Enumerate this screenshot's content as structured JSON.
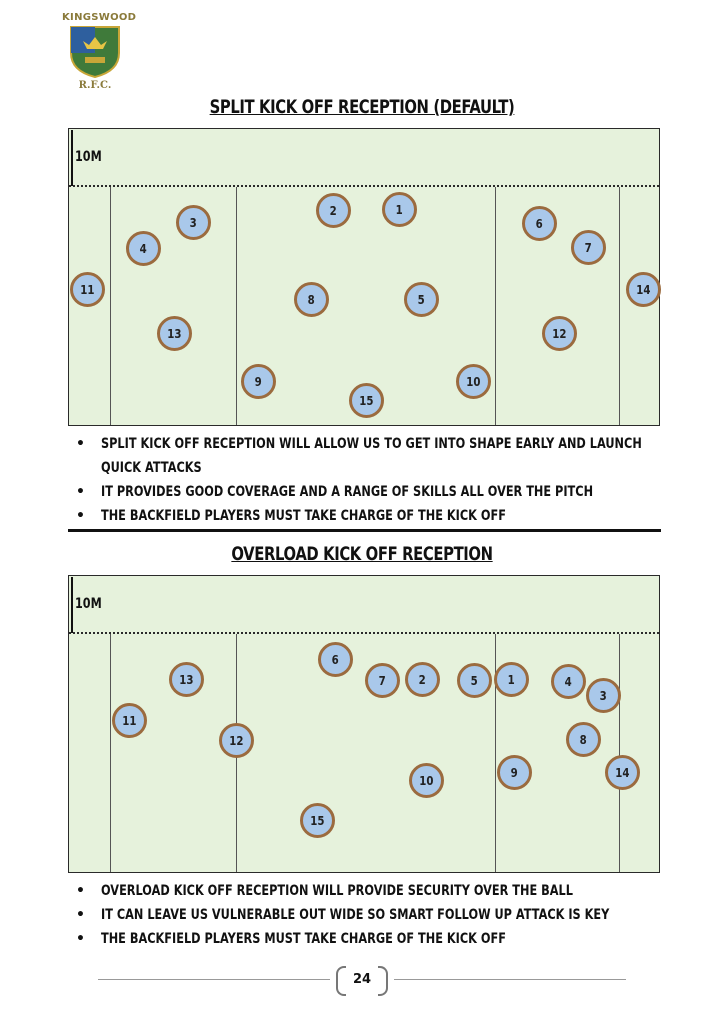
{
  "logo": {
    "top_text": "KINGSWOOD",
    "bottom_text": "R.F.C."
  },
  "sections": [
    {
      "title": "Split kick off reception (Default)",
      "ten_label": "10M",
      "players": [
        "2",
        "1",
        "3",
        "4",
        "6",
        "7",
        "11",
        "14",
        "8",
        "5",
        "13",
        "12",
        "9",
        "10",
        "15"
      ],
      "bullets": [
        "Split kick off reception will allow us to get into shape early and launch quick attacks",
        "It provides good coverage and a range of skills all over the pitch",
        "The backfield players must take charge of the kick off"
      ]
    },
    {
      "title": "Overload kick off reception",
      "ten_label": "10M",
      "players": [
        "6",
        "13",
        "7",
        "2",
        "5",
        "1",
        "4",
        "3",
        "11",
        "12",
        "8",
        "10",
        "9",
        "14",
        "15"
      ],
      "bullets": [
        "Overload kick off reception will provide security over the ball",
        "It can leave us vulnerable out wide so smart follow up attack is key",
        "The backfield players must take charge of the kick off"
      ]
    }
  ],
  "page_number": "24"
}
